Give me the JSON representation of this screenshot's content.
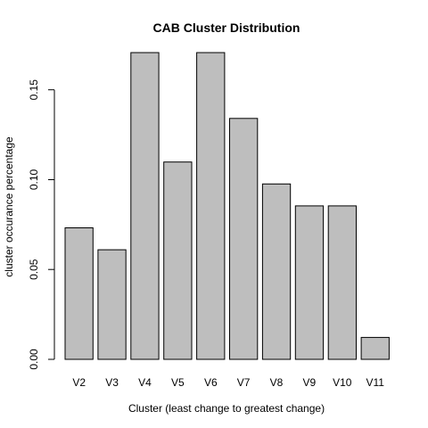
{
  "chart_data": {
    "type": "bar",
    "title": "CAB Cluster Distribution",
    "xlabel": "Cluster (least change to greatest change)",
    "ylabel": "cluster occurance percentage",
    "categories": [
      "V2",
      "V3",
      "V4",
      "V5",
      "V6",
      "V7",
      "V8",
      "V9",
      "V10",
      "V11"
    ],
    "values": [
      0.0732,
      0.061,
      0.1707,
      0.1098,
      0.1707,
      0.1341,
      0.0976,
      0.0854,
      0.0854,
      0.0122
    ],
    "ylim": [
      0,
      0.17
    ],
    "yticks": [
      0.0,
      0.05,
      0.1,
      0.15
    ],
    "ytick_labels": [
      "0.00",
      "0.05",
      "0.10",
      "0.15"
    ],
    "grid": false,
    "bar_color": "#bebebe",
    "bar_border_color": "#000000"
  }
}
